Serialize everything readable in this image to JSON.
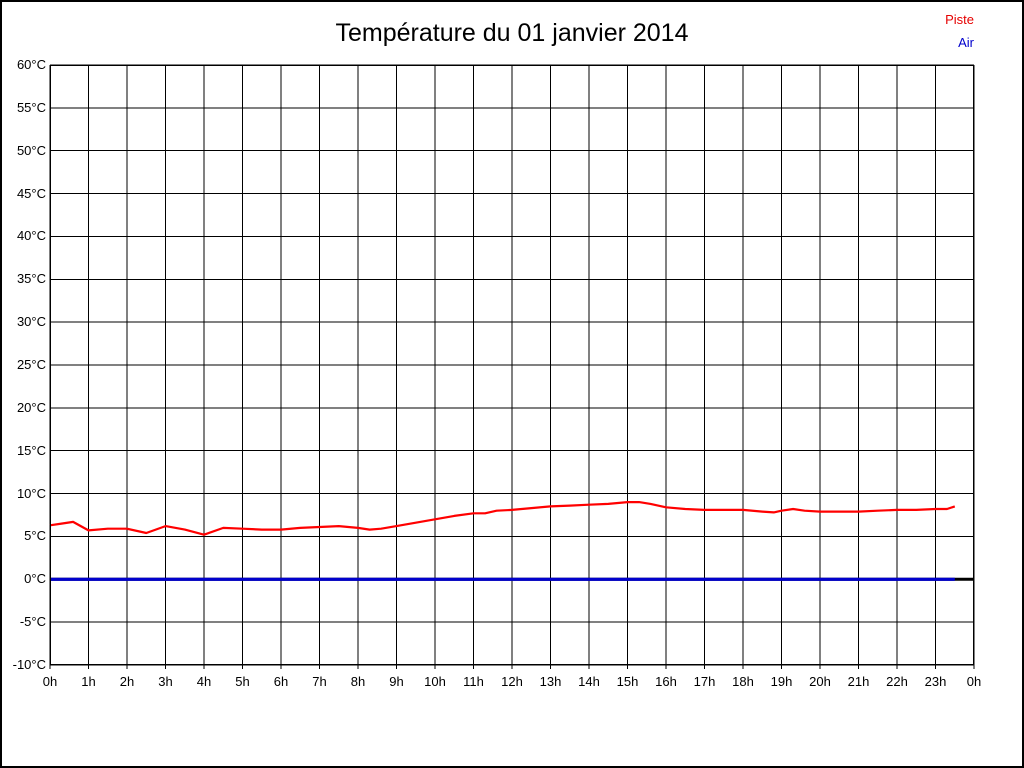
{
  "chart_data": {
    "type": "line",
    "title": "Température du 01 janvier 2014",
    "xlabel": "",
    "ylabel": "",
    "xlim": [
      0,
      24
    ],
    "ylim": [
      -10,
      60
    ],
    "y_tick_step": 5,
    "grid": true,
    "grid_color": "#000000",
    "legend_position": "top-right",
    "x_tick_labels": [
      "0h",
      "1h",
      "2h",
      "3h",
      "4h",
      "5h",
      "6h",
      "7h",
      "8h",
      "9h",
      "10h",
      "11h",
      "12h",
      "13h",
      "14h",
      "15h",
      "16h",
      "17h",
      "18h",
      "19h",
      "20h",
      "21h",
      "22h",
      "23h",
      "0h"
    ],
    "y_tick_labels": [
      "60°C",
      "55°C",
      "50°C",
      "45°C",
      "40°C",
      "35°C",
      "30°C",
      "25°C",
      "20°C",
      "15°C",
      "10°C",
      "5°C",
      "0°C",
      "-5°C",
      "-10°C"
    ],
    "zero_axis": {
      "y": 0,
      "x_start": 0,
      "x_end": 24,
      "color": "#000000",
      "stroke_width": 3
    },
    "series": [
      {
        "name": "Piste",
        "color": "#ff0000",
        "stroke_width": 2.2,
        "points": [
          [
            0,
            6.3
          ],
          [
            0.3,
            6.5
          ],
          [
            0.6,
            6.7
          ],
          [
            1,
            5.7
          ],
          [
            1.5,
            5.9
          ],
          [
            2,
            5.9
          ],
          [
            2.5,
            5.4
          ],
          [
            3,
            6.2
          ],
          [
            3.5,
            5.8
          ],
          [
            4,
            5.2
          ],
          [
            4.5,
            6.0
          ],
          [
            5,
            5.9
          ],
          [
            5.5,
            5.8
          ],
          [
            6,
            5.8
          ],
          [
            6.5,
            6.0
          ],
          [
            7,
            6.1
          ],
          [
            7.5,
            6.2
          ],
          [
            8,
            6.0
          ],
          [
            8.3,
            5.8
          ],
          [
            8.6,
            5.9
          ],
          [
            9,
            6.2
          ],
          [
            9.5,
            6.6
          ],
          [
            10,
            7.0
          ],
          [
            10.5,
            7.4
          ],
          [
            11,
            7.7
          ],
          [
            11.3,
            7.7
          ],
          [
            11.6,
            8.0
          ],
          [
            12,
            8.1
          ],
          [
            12.5,
            8.3
          ],
          [
            13,
            8.5
          ],
          [
            13.5,
            8.6
          ],
          [
            14,
            8.7
          ],
          [
            14.5,
            8.8
          ],
          [
            15,
            9.0
          ],
          [
            15.3,
            9.0
          ],
          [
            15.6,
            8.8
          ],
          [
            16,
            8.4
          ],
          [
            16.5,
            8.2
          ],
          [
            17,
            8.1
          ],
          [
            17.5,
            8.1
          ],
          [
            18,
            8.1
          ],
          [
            18.5,
            7.9
          ],
          [
            18.8,
            7.8
          ],
          [
            19,
            8.0
          ],
          [
            19.3,
            8.2
          ],
          [
            19.6,
            8.0
          ],
          [
            20,
            7.9
          ],
          [
            20.5,
            7.9
          ],
          [
            21,
            7.9
          ],
          [
            21.5,
            8.0
          ],
          [
            22,
            8.1
          ],
          [
            22.5,
            8.1
          ],
          [
            23,
            8.2
          ],
          [
            23.3,
            8.2
          ],
          [
            23.5,
            8.5
          ]
        ]
      },
      {
        "name": "Air",
        "color": "#0000cc",
        "stroke_width": 3.2,
        "points": [
          [
            0,
            0
          ],
          [
            23.5,
            0
          ]
        ]
      }
    ]
  },
  "legend": {
    "items": [
      {
        "label": "Piste",
        "color": "#e60000"
      },
      {
        "label": "Air",
        "color": "#0000cc"
      }
    ]
  }
}
